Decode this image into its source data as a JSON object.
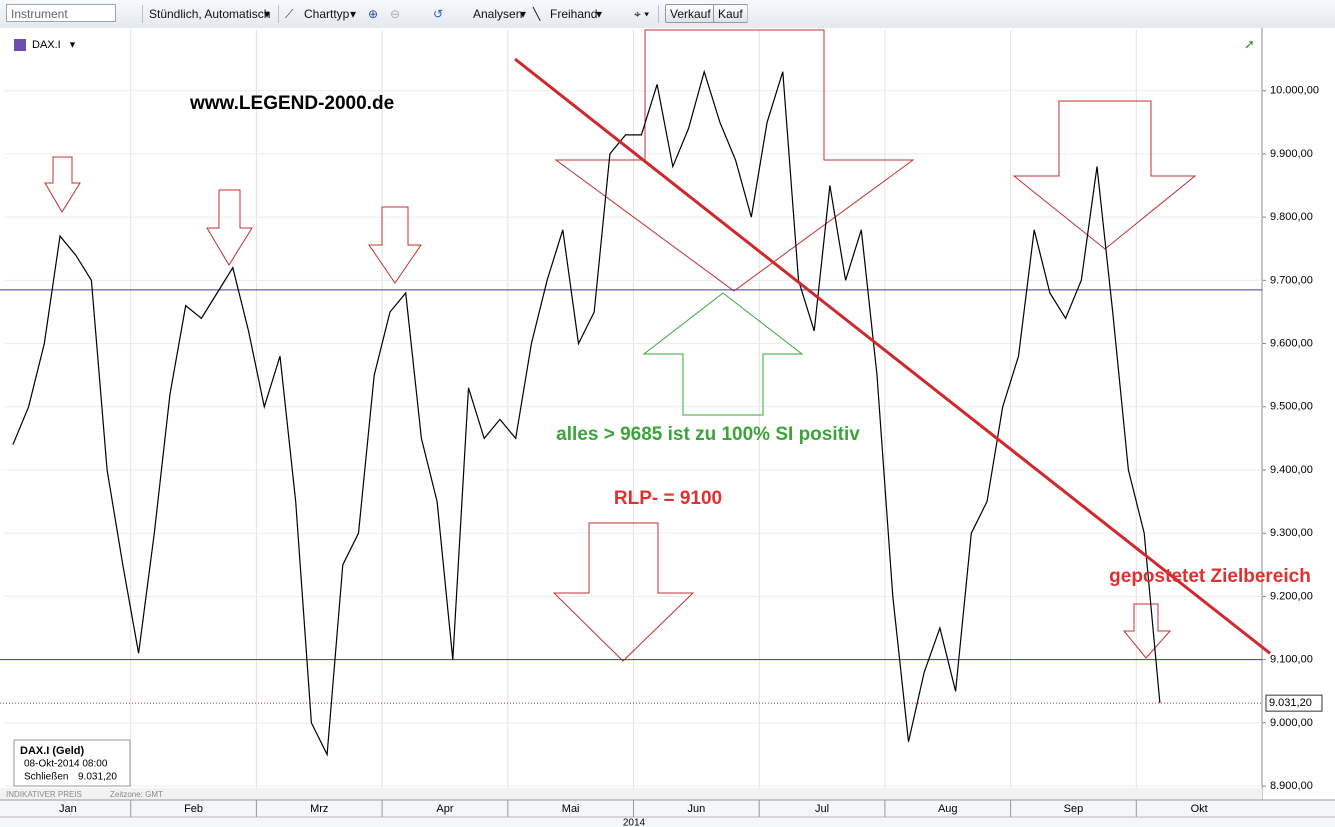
{
  "ui": {
    "instrument_placeholder": "Instrument",
    "interval": "Stündlich, Automatisch",
    "chart_type": "Charttyp",
    "analyses": "Analysen",
    "freehand": "Freihand",
    "sell": "Verkauf",
    "buy": "Kauf",
    "symbol": "DAX.I",
    "info_title": "DAX.I (Geld)",
    "info_time": "08-Okt-2014 08:00",
    "info_close_label": "Schließen",
    "info_close_value": "9.031,20",
    "price_type": "INDIKATIVER PREIS",
    "timezone": "Zeitzone: GMT"
  },
  "chart_data": {
    "type": "line",
    "x_label": "2014",
    "categories": [
      null,
      null,
      null,
      "Jan",
      null,
      null,
      null,
      null,
      null,
      null,
      null,
      "Feb",
      null,
      null,
      null,
      null,
      null,
      null,
      null,
      "Mrz",
      null,
      null,
      null,
      null,
      null,
      null,
      null,
      "Apr",
      null,
      null,
      null,
      null,
      null,
      null,
      null,
      "Mai",
      null,
      null,
      null,
      null,
      null,
      null,
      null,
      "Jun",
      null,
      null,
      null,
      null,
      null,
      null,
      null,
      "Jul",
      null,
      null,
      null,
      null,
      null,
      null,
      null,
      "Aug",
      null,
      null,
      null,
      null,
      null,
      null,
      null,
      "Sep",
      null,
      null,
      null,
      null,
      null,
      null,
      null,
      "Okt",
      null,
      null,
      null,
      null
    ],
    "series": [
      {
        "name": "DAX.I",
        "color": "#000000",
        "values": [
          9440,
          9500,
          9600,
          9770,
          9740,
          9700,
          9400,
          9250,
          9110,
          9300,
          9520,
          9660,
          9640,
          9680,
          9720,
          9620,
          9500,
          9580,
          9350,
          9000,
          8950,
          9250,
          9300,
          9550,
          9650,
          9680,
          9450,
          9350,
          9100,
          9530,
          9450,
          9480,
          9450,
          9600,
          9700,
          9780,
          9600,
          9650,
          9900,
          9930,
          9930,
          10010,
          9880,
          9940,
          10030,
          9950,
          9890,
          9800,
          9950,
          10030,
          9700,
          9620,
          9850,
          9700,
          9780,
          9550,
          9200,
          8970,
          9080,
          9150,
          9050,
          9300,
          9350,
          9500,
          9580,
          9780,
          9680,
          9640,
          9700,
          9880,
          9650,
          9400,
          9300,
          9031.2,
          null,
          null,
          null,
          null,
          null,
          null
        ]
      }
    ],
    "ylim": [
      8878,
      10096
    ],
    "yticks": [
      {
        "value": 8900,
        "label": "8.900,00"
      },
      {
        "value": 9000,
        "label": "9.000,00"
      },
      {
        "value": 9100,
        "label": "9.100,00"
      },
      {
        "value": 9200,
        "label": "9.200,00"
      },
      {
        "value": 9300,
        "label": "9.300,00"
      },
      {
        "value": 9400,
        "label": "9.400,00"
      },
      {
        "value": 9500,
        "label": "9.500,00"
      },
      {
        "value": 9600,
        "label": "9.600,00"
      },
      {
        "value": 9700,
        "label": "9.700,00"
      },
      {
        "value": 9800,
        "label": "9.800,00"
      },
      {
        "value": 9900,
        "label": "9.900,00"
      },
      {
        "value": 10000,
        "label": "10.000,00"
      }
    ],
    "grid": true,
    "hlines": [
      {
        "value": 9685,
        "color": "#3c3c8c"
      },
      {
        "value": 9100,
        "color": "#3c3c8c"
      }
    ],
    "last_price": {
      "value": 9031.2,
      "label": "9.031,20",
      "color": "#c03030"
    },
    "trendline": {
      "start": 10050,
      "end": 9110,
      "color": "#d0282c"
    },
    "annotations": [
      {
        "text": "www.LEGEND-2000.de",
        "color": "#000000"
      },
      {
        "text": "alles > 9685 ist zu 100% SI positiv",
        "color": "#3aa63a"
      },
      {
        "text": "RLP- = 9100",
        "color": "#e03030"
      },
      {
        "text": "gepostetet Zielbereich",
        "color": "#e03030"
      }
    ]
  }
}
